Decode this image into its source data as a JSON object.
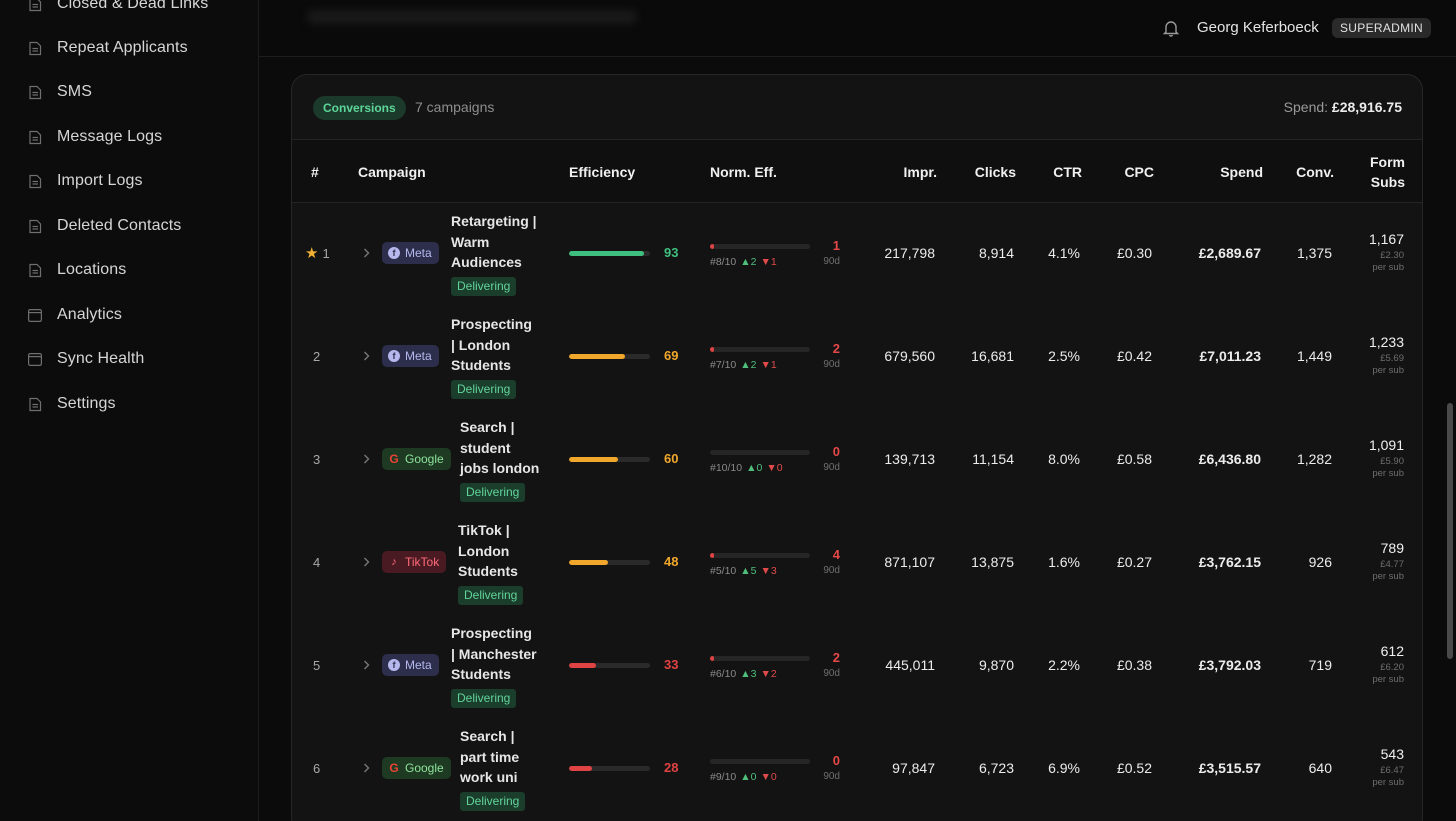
{
  "sidebar": {
    "items": [
      {
        "label": "Closed & Dead Links",
        "icon": "document-icon"
      },
      {
        "label": "Repeat Applicants",
        "icon": "document-icon"
      },
      {
        "label": "SMS",
        "icon": "document-icon"
      },
      {
        "label": "Message Logs",
        "icon": "document-icon"
      },
      {
        "label": "Import Logs",
        "icon": "document-icon"
      },
      {
        "label": "Deleted Contacts",
        "icon": "document-icon"
      },
      {
        "label": "Locations",
        "icon": "document-icon"
      },
      {
        "label": "Analytics",
        "icon": "window-icon"
      },
      {
        "label": "Sync Health",
        "icon": "window-icon"
      },
      {
        "label": "Settings",
        "icon": "document-icon"
      }
    ]
  },
  "header": {
    "user_name": "Georg Keferboeck",
    "role": "SUPERADMIN"
  },
  "card": {
    "tab_label": "Conversions",
    "campaign_count": "7 campaigns",
    "spend_label": "Spend:",
    "spend_total": "£28,916.75"
  },
  "columns": {
    "rank": "#",
    "campaign": "Campaign",
    "efficiency": "Efficiency",
    "norm_eff": "Norm. Eff.",
    "impr": "Impr.",
    "clicks": "Clicks",
    "ctr": "CTR",
    "cpc": "CPC",
    "spend": "Spend",
    "conv": "Conv.",
    "form_subs_1": "Form",
    "form_subs_2": "Subs"
  },
  "rows": [
    {
      "rank": "1",
      "star": true,
      "platform": "Meta",
      "name_lines": [
        "Retargeting |",
        "Warm",
        "Audiences"
      ],
      "status": "Delivering",
      "efficiency": 93,
      "eff_color": "#3fbf7f",
      "norm_val": "1",
      "norm_fill": 0.02,
      "norm_rank": "#8/10",
      "norm_up": "▲2",
      "norm_down": "▼1",
      "norm_period": "90d",
      "impr": "217,798",
      "clicks": "8,914",
      "ctr": "4.1%",
      "cpc": "£0.30",
      "spend": "£2,689.67",
      "conv": "1,375",
      "form_subs": "1,167",
      "per_sub": "£2.30",
      "per_sub_label": "per sub"
    },
    {
      "rank": "2",
      "star": false,
      "platform": "Meta",
      "name_lines": [
        "Prospecting",
        "| London",
        "Students"
      ],
      "status": "Delivering",
      "efficiency": 69,
      "eff_color": "#f0a72b",
      "norm_val": "2",
      "norm_fill": 0.02,
      "norm_rank": "#7/10",
      "norm_up": "▲2",
      "norm_down": "▼1",
      "norm_period": "90d",
      "impr": "679,560",
      "clicks": "16,681",
      "ctr": "2.5%",
      "cpc": "£0.42",
      "spend": "£7,011.23",
      "conv": "1,449",
      "form_subs": "1,233",
      "per_sub": "£5.69",
      "per_sub_label": "per sub"
    },
    {
      "rank": "3",
      "star": false,
      "platform": "Google",
      "name_lines": [
        "Search |",
        "student",
        "jobs london"
      ],
      "status": "Delivering",
      "efficiency": 60,
      "eff_color": "#f0a72b",
      "norm_val": "0",
      "norm_fill": 0.0,
      "norm_rank": "#10/10",
      "norm_up": "▲0",
      "norm_down": "▼0",
      "norm_period": "90d",
      "impr": "139,713",
      "clicks": "11,154",
      "ctr": "8.0%",
      "cpc": "£0.58",
      "spend": "£6,436.80",
      "conv": "1,282",
      "form_subs": "1,091",
      "per_sub": "£5.90",
      "per_sub_label": "per sub"
    },
    {
      "rank": "4",
      "star": false,
      "platform": "TikTok",
      "name_lines": [
        "TikTok |",
        "London",
        "Students"
      ],
      "status": "Delivering",
      "efficiency": 48,
      "eff_color": "#f0a72b",
      "norm_val": "4",
      "norm_fill": 0.04,
      "norm_rank": "#5/10",
      "norm_up": "▲5",
      "norm_down": "▼3",
      "norm_period": "90d",
      "impr": "871,107",
      "clicks": "13,875",
      "ctr": "1.6%",
      "cpc": "£0.27",
      "spend": "£3,762.15",
      "conv": "926",
      "form_subs": "789",
      "per_sub": "£4.77",
      "per_sub_label": "per sub"
    },
    {
      "rank": "5",
      "star": false,
      "platform": "Meta",
      "name_lines": [
        "Prospecting",
        "| Manchester",
        "Students"
      ],
      "status": "Delivering",
      "efficiency": 33,
      "eff_color": "#e04343",
      "norm_val": "2",
      "norm_fill": 0.02,
      "norm_rank": "#6/10",
      "norm_up": "▲3",
      "norm_down": "▼2",
      "norm_period": "90d",
      "impr": "445,011",
      "clicks": "9,870",
      "ctr": "2.2%",
      "cpc": "£0.38",
      "spend": "£3,792.03",
      "conv": "719",
      "form_subs": "612",
      "per_sub": "£6.20",
      "per_sub_label": "per sub"
    },
    {
      "rank": "6",
      "star": false,
      "platform": "Google",
      "name_lines": [
        "Search |",
        "part time",
        "work uni"
      ],
      "status": "Delivering",
      "efficiency": 28,
      "eff_color": "#e04343",
      "norm_val": "0",
      "norm_fill": 0.0,
      "norm_rank": "#9/10",
      "norm_up": "▲0",
      "norm_down": "▼0",
      "norm_period": "90d",
      "impr": "97,847",
      "clicks": "6,723",
      "ctr": "6.9%",
      "cpc": "£0.52",
      "spend": "£3,515.57",
      "conv": "640",
      "form_subs": "543",
      "per_sub": "£6.47",
      "per_sub_label": "per sub"
    }
  ]
}
